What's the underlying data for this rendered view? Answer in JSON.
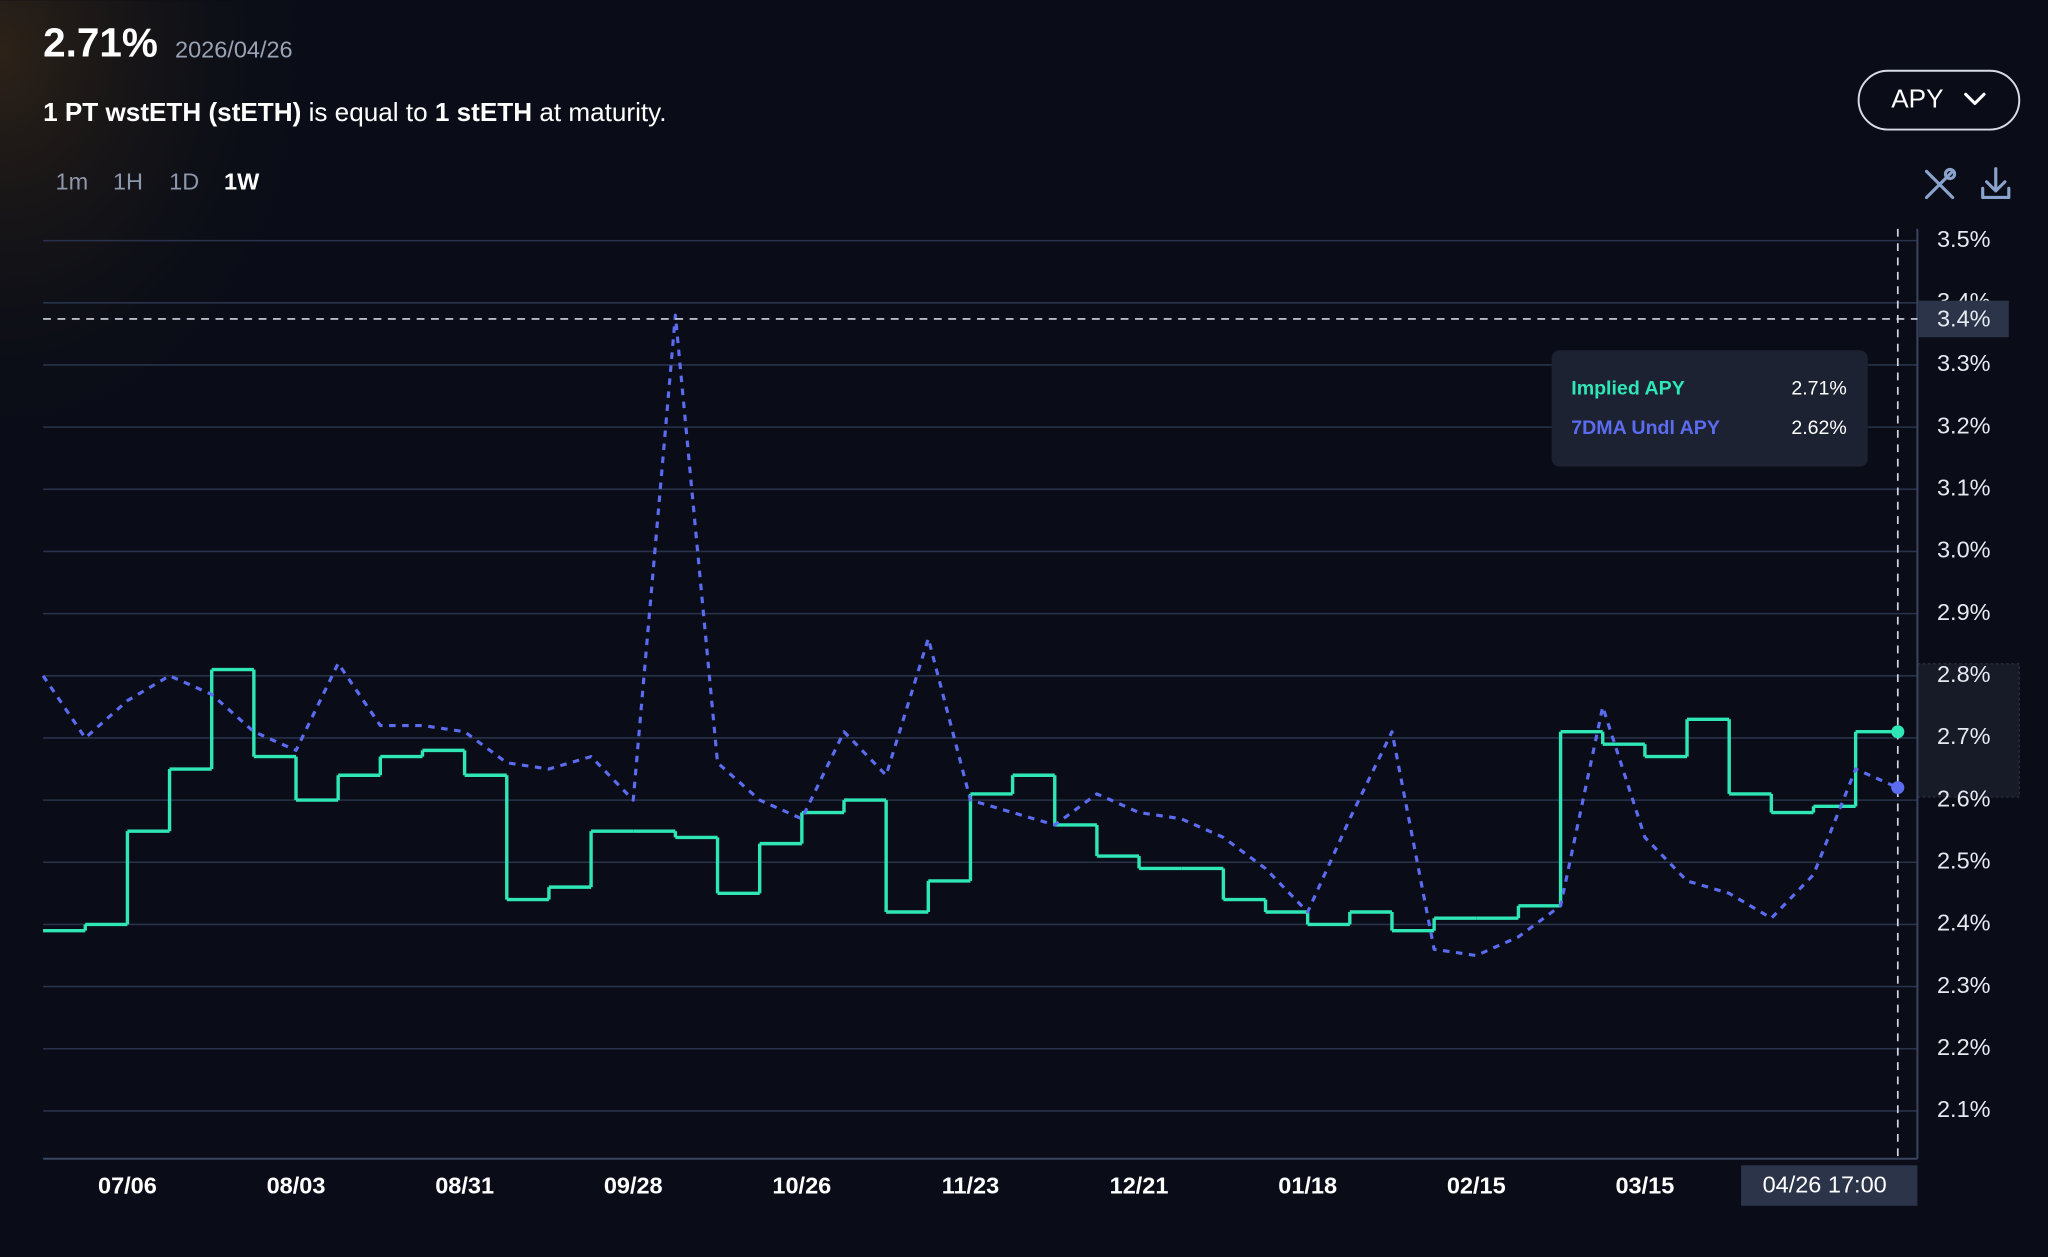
{
  "header": {
    "value": "2.71%",
    "date": "2026/04/26",
    "description": [
      "1 PT wstETH (stETH)",
      " is equal to ",
      "1 stETH",
      " at maturity."
    ],
    "dropdown": "APY",
    "timeframes": [
      "1m",
      "1H",
      "1D",
      "1W"
    ]
  },
  "chart_data": {
    "type": "line",
    "categories": [
      null,
      null,
      "07/06",
      null,
      null,
      null,
      "08/03",
      null,
      null,
      null,
      "08/31",
      null,
      null,
      null,
      "09/28",
      null,
      null,
      null,
      "10/26",
      null,
      null,
      null,
      "11/23",
      null,
      null,
      null,
      "12/21",
      null,
      null,
      null,
      "01/18",
      null,
      null,
      null,
      "02/15",
      null,
      null,
      null,
      "03/15",
      null,
      null,
      null,
      null,
      null,
      null
    ],
    "series": [
      {
        "name": "Implied APY",
        "color": "#2ee6b6",
        "step": "after",
        "dashed": false,
        "values": [
          2.39,
          2.4,
          2.55,
          2.65,
          2.81,
          2.67,
          2.6,
          2.64,
          2.67,
          2.68,
          2.64,
          2.44,
          2.46,
          2.55,
          2.55,
          2.54,
          2.45,
          2.53,
          2.58,
          2.6,
          2.42,
          2.47,
          2.61,
          2.64,
          2.56,
          2.51,
          2.49,
          2.49,
          2.44,
          2.42,
          2.4,
          2.42,
          2.39,
          2.41,
          2.41,
          2.43,
          2.71,
          2.69,
          2.67,
          2.73,
          2.61,
          2.58,
          2.59,
          2.71,
          2.71
        ]
      },
      {
        "name": "7DMA Undl APY",
        "color": "#5b6cf0",
        "step": null,
        "dashed": true,
        "values": [
          2.8,
          2.7,
          2.76,
          2.8,
          2.77,
          2.71,
          2.68,
          2.82,
          2.72,
          2.72,
          2.71,
          2.66,
          2.65,
          2.67,
          2.6,
          3.38,
          2.66,
          2.6,
          2.57,
          2.71,
          2.64,
          2.86,
          2.6,
          2.58,
          2.56,
          2.61,
          2.58,
          2.57,
          2.54,
          2.49,
          2.42,
          2.57,
          2.71,
          2.36,
          2.35,
          2.38,
          2.43,
          2.75,
          2.54,
          2.47,
          2.45,
          2.41,
          2.48,
          2.65,
          2.62
        ]
      }
    ],
    "ylim": [
      2.023,
      3.519
    ],
    "yticks": [
      {
        "value": 2.1,
        "label": "2.1%"
      },
      {
        "value": 2.2,
        "label": "2.2%"
      },
      {
        "value": 2.3,
        "label": "2.3%"
      },
      {
        "value": 2.4,
        "label": "2.4%"
      },
      {
        "value": 2.5,
        "label": "2.5%"
      },
      {
        "value": 2.6,
        "label": "2.6%"
      },
      {
        "value": 2.7,
        "label": "2.7%"
      },
      {
        "value": 2.8,
        "label": "2.8%"
      },
      {
        "value": 2.9,
        "label": "2.9%"
      },
      {
        "value": 3.0,
        "label": "3.0%"
      },
      {
        "value": 3.1,
        "label": "3.1%"
      },
      {
        "value": 3.2,
        "label": "3.2%"
      },
      {
        "value": 3.3,
        "label": "3.3%"
      },
      {
        "value": 3.4,
        "label": "3.4%"
      },
      {
        "value": 3.5,
        "label": "3.5%"
      }
    ],
    "grid": true,
    "crosshair": {
      "x_label": "04/26 17:00",
      "y": {
        "value": 3.374,
        "label": "3.4%"
      }
    },
    "tooltip": {
      "values": [
        "2.71%",
        "2.62%"
      ]
    }
  }
}
